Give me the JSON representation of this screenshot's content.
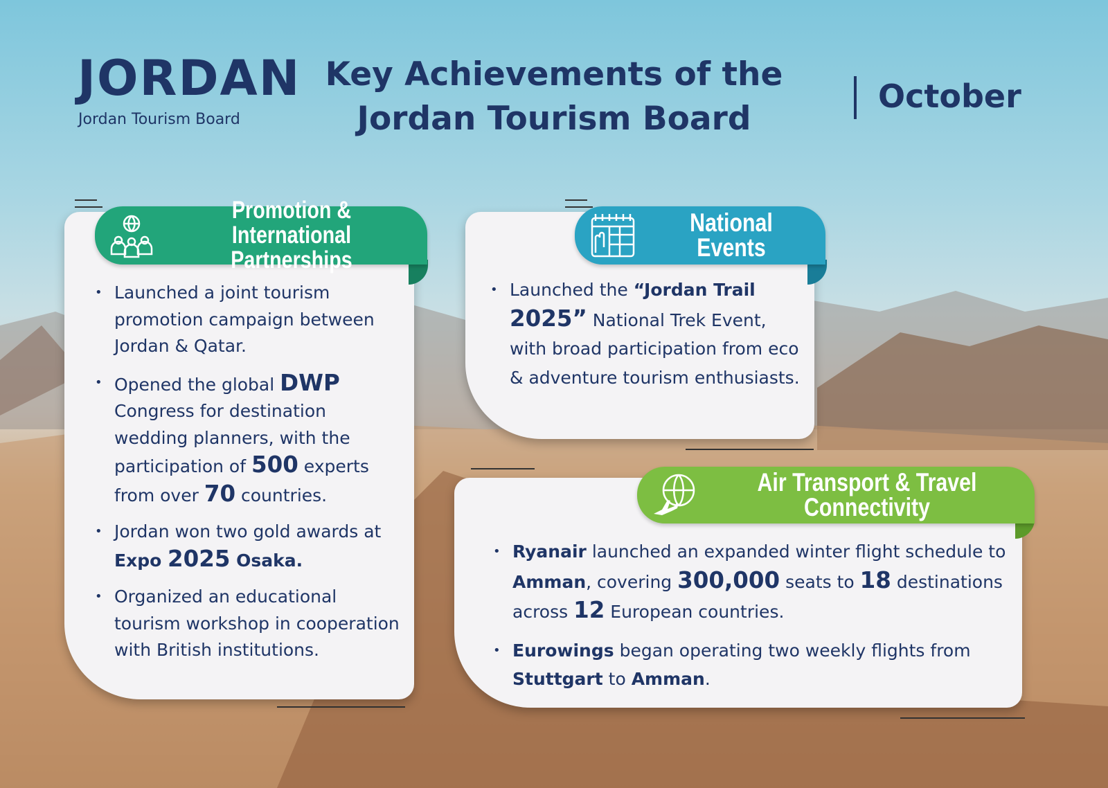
{
  "header": {
    "logo": "JORDAN",
    "logo_subtitle": "Jordan Tourism Board",
    "title_line1": "Key Achievements of the",
    "title_line2": "Jordan Tourism Board",
    "month": "October"
  },
  "sections": [
    {
      "title_line1": "Promotion & International",
      "title_line2": "Partnerships",
      "bullets": [
        [
          "Launched a joint tourism promotion campaign between Jordan & Qatar."
        ],
        [
          "Opened the global ",
          "DWP",
          " Congress for destination wedding planners, with the participation of ",
          "500",
          " experts from over ",
          "70",
          " countries."
        ],
        [
          "Jordan won two gold awards at ",
          "Expo ",
          "2025",
          " Osaka."
        ],
        [
          "Organized an educational tourism workshop in cooperation with British institutions."
        ]
      ]
    },
    {
      "title": "National Events",
      "bullets": [
        [
          "Launched the ",
          "“Jordan Trail ",
          "2025”",
          " National Trek Event, with broad participation from eco & adventure tourism enthusiasts."
        ]
      ]
    },
    {
      "title": "Air Transport & Travel Connectivity",
      "bullets": [
        [
          "Ryanair",
          " launched an expanded winter flight schedule to ",
          "Amman",
          ", covering ",
          "300,000",
          " seats to ",
          "18",
          " destinations across ",
          "12",
          " European countries."
        ],
        [
          "Eurowings",
          " began operating two weekly flights from ",
          "Stuttgart",
          " to ",
          "Amman",
          "."
        ]
      ]
    }
  ]
}
